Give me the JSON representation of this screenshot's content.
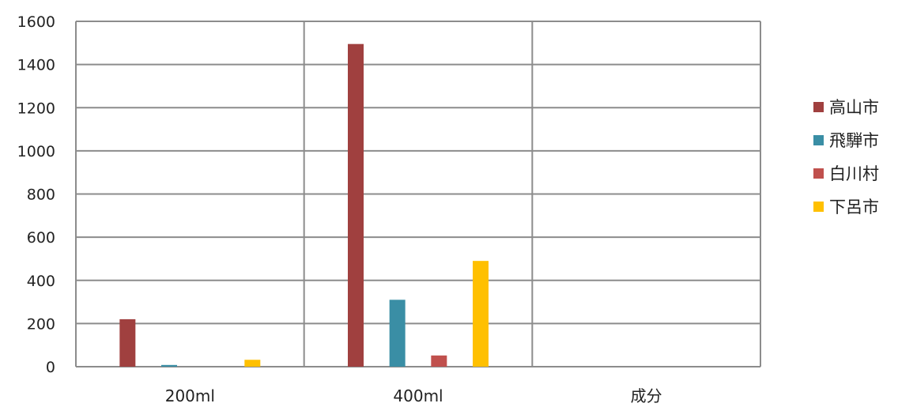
{
  "chart_data": {
    "type": "bar",
    "title": "",
    "xlabel": "",
    "ylabel": "",
    "categories": [
      "200ml",
      "400ml",
      "成分"
    ],
    "ylim": [
      0,
      1600
    ],
    "yticks": [
      0,
      200,
      400,
      600,
      800,
      1000,
      1200,
      1400,
      1600
    ],
    "grid": true,
    "legend_position": "right",
    "series": [
      {
        "name": "高山市",
        "color": "#A0403F",
        "values": [
          220,
          1495,
          null
        ]
      },
      {
        "name": "飛騨市",
        "color": "#3A8EA5",
        "values": [
          8,
          310,
          null
        ]
      },
      {
        "name": "白川村",
        "color": "#C0504D",
        "values": [
          0,
          52,
          null
        ]
      },
      {
        "name": "下呂市",
        "color": "#FFC000",
        "values": [
          32,
          490,
          null
        ]
      }
    ]
  }
}
